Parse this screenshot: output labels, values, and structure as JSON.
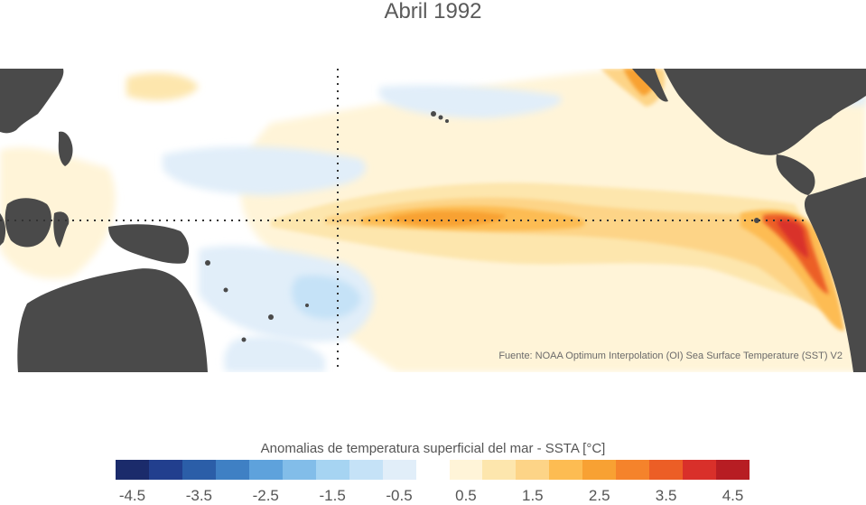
{
  "title": "Abril 1992",
  "source_note": "Fuente: NOAA Optimum Interpolation (OI) Sea Surface Temperature (SST) V2",
  "colorbar": {
    "title": "Anomalias de temperatura superficial del mar - SSTA  [°C]",
    "colors": [
      "#1b2b6b",
      "#223f8e",
      "#2b5ea8",
      "#3f80c4",
      "#5ea2dc",
      "#82bde9",
      "#a6d4f2",
      "#c5e2f7",
      "#e1eef9",
      "#ffffff",
      "#fff4d8",
      "#fde6ad",
      "#fdd487",
      "#fdbc52",
      "#f8a133",
      "#f5832b",
      "#ec5e26",
      "#d9302a",
      "#b71d23"
    ],
    "tick_labels": [
      "-4.5",
      "-3.5",
      "-2.5",
      "-1.5",
      "-0.5",
      "0.5",
      "1.5",
      "2.5",
      "3.5",
      "4.5"
    ]
  },
  "map_colors": {
    "land": "#4a4a4a",
    "ocean": "#ffffff",
    "guide_lines": "#333333"
  },
  "icons": {
    "land": "landmass-shape",
    "anomaly": "anomaly-contour"
  }
}
